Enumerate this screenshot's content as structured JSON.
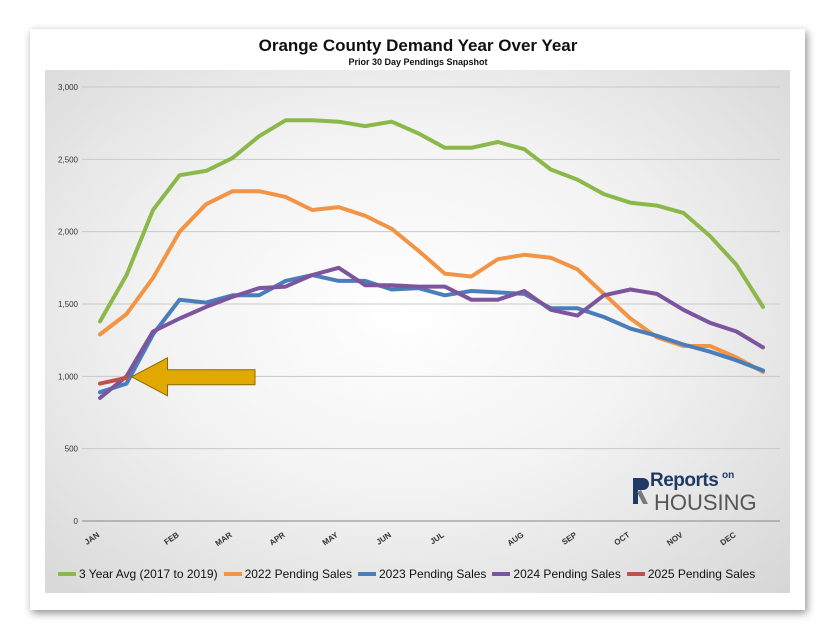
{
  "chart_data": {
    "type": "line",
    "title": "Orange County Demand Year Over Year",
    "subtitle": "Prior 30 Day Pendings Snapshot",
    "xlabel": "",
    "ylabel": "",
    "ylim": [
      0,
      3000
    ],
    "yticks": [
      0,
      500,
      1000,
      1500,
      2000,
      2500,
      3000
    ],
    "ytick_labels": [
      "0",
      "500",
      "1,000",
      "1,500",
      "2,000",
      "2,500",
      "3,000"
    ],
    "month_labels": [
      "JAN",
      "FEB",
      "MAR",
      "APR",
      "MAY",
      "JUN",
      "JUL",
      "AUG",
      "SEP",
      "OCT",
      "NOV",
      "DEC"
    ],
    "month_positions": [
      0,
      3,
      5,
      7,
      9,
      11,
      13,
      16,
      18,
      20,
      22,
      24
    ],
    "grid": true,
    "legend_position": "bottom",
    "series": [
      {
        "name": "3 Year Avg (2017 to 2019)",
        "color": "#8bb84a",
        "x": [
          0,
          1,
          2,
          3,
          4,
          5,
          6,
          7,
          8,
          9,
          10,
          11,
          12,
          13,
          14,
          15,
          16,
          17,
          18,
          19,
          20,
          21,
          22,
          23,
          24,
          25
        ],
        "values": [
          1380,
          1700,
          2150,
          2390,
          2420,
          2510,
          2660,
          2770,
          2770,
          2760,
          2730,
          2760,
          2680,
          2580,
          2580,
          2620,
          2570,
          2430,
          2360,
          2260,
          2200,
          2180,
          2130,
          1970,
          1770,
          1480
        ]
      },
      {
        "name": "2022 Pending Sales",
        "color": "#f29446",
        "x": [
          0,
          1,
          2,
          3,
          4,
          5,
          6,
          7,
          8,
          9,
          10,
          11,
          12,
          13,
          14,
          15,
          16,
          17,
          18,
          19,
          20,
          21,
          22,
          23,
          24,
          25
        ],
        "values": [
          1290,
          1430,
          1680,
          2000,
          2190,
          2280,
          2280,
          2240,
          2150,
          2170,
          2110,
          2020,
          1870,
          1710,
          1690,
          1810,
          1840,
          1820,
          1740,
          1570,
          1400,
          1270,
          1210,
          1210,
          1130,
          1030
        ]
      },
      {
        "name": "2023 Pending Sales",
        "color": "#4a7ebb",
        "x": [
          0,
          1,
          2,
          3,
          4,
          5,
          6,
          7,
          8,
          9,
          10,
          11,
          12,
          13,
          14,
          15,
          16,
          17,
          18,
          19,
          20,
          21,
          22,
          23,
          24,
          25
        ],
        "values": [
          890,
          950,
          1290,
          1530,
          1510,
          1560,
          1560,
          1660,
          1700,
          1660,
          1660,
          1600,
          1610,
          1560,
          1590,
          1580,
          1570,
          1470,
          1470,
          1410,
          1330,
          1280,
          1220,
          1170,
          1110,
          1040
        ]
      },
      {
        "name": "2024 Pending Sales",
        "color": "#7d559e",
        "x": [
          0,
          1,
          2,
          3,
          4,
          5,
          6,
          7,
          8,
          9,
          10,
          11,
          12,
          13,
          14,
          15,
          16,
          17,
          18,
          19,
          20,
          21,
          22,
          23,
          24,
          25
        ],
        "values": [
          850,
          1000,
          1310,
          1400,
          1480,
          1550,
          1610,
          1620,
          1700,
          1750,
          1630,
          1630,
          1620,
          1620,
          1530,
          1530,
          1590,
          1460,
          1420,
          1560,
          1600,
          1570,
          1460,
          1370,
          1310,
          1200
        ]
      },
      {
        "name": "2025 Pending Sales",
        "color": "#c0504d",
        "x": [
          0,
          1
        ],
        "values": [
          950,
          990
        ]
      }
    ],
    "annotation_arrow_color": "#e0a800"
  },
  "logo": {
    "reports": "Reports",
    "on": "on",
    "housing": "HOUSING"
  }
}
